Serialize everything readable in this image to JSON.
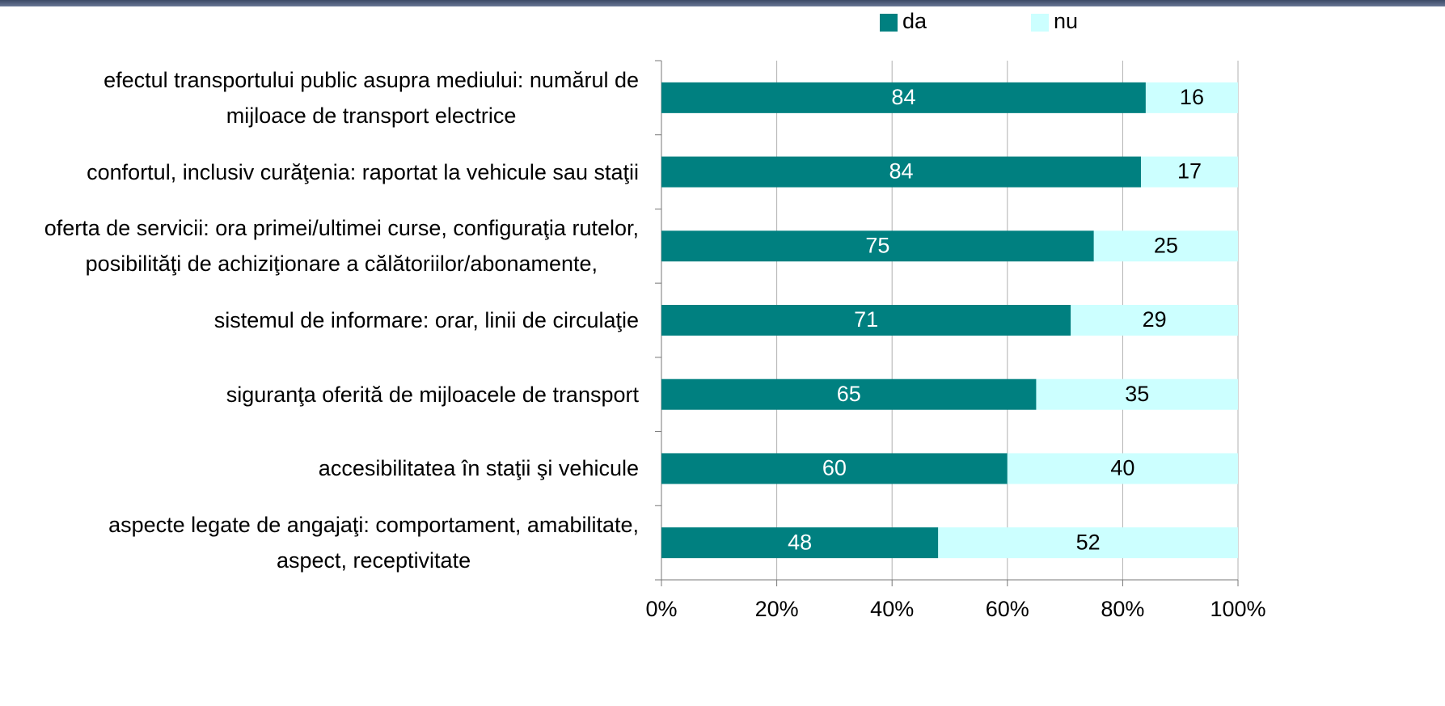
{
  "chart_data": {
    "type": "bar",
    "orientation": "horizontal",
    "stacked": true,
    "percent_stacked": true,
    "categories": [
      "efectul transportului public asupra mediului: numărul de\nmijloace de transport electrice",
      "confortul, inclusiv curăţenia: raportat la vehicule sau staţii",
      "oferta de servicii: ora primei/ultimei curse, configuraţia rutelor,\nposibilităţi de achiziţionare a călătoriilor/abonamente,",
      "sistemul de informare: orar, linii de circulaţie",
      "siguranţa oferită de mijloacele de transport",
      "accesibilitatea în staţii şi vehicule",
      "aspecte legate de angajaţi: comportament, amabilitate,\naspect, receptivitate"
    ],
    "series": [
      {
        "name": "da",
        "color": "#008080",
        "label_color": "#ffffff",
        "values": [
          84,
          84,
          75,
          71,
          65,
          60,
          48
        ]
      },
      {
        "name": "nu",
        "color": "#ccffff",
        "label_color": "#000000",
        "values": [
          16,
          17,
          25,
          29,
          35,
          40,
          52
        ]
      }
    ],
    "xlim": [
      0,
      100
    ],
    "xticks": [
      {
        "value": 0,
        "label": "0%"
      },
      {
        "value": 20,
        "label": "20%"
      },
      {
        "value": 40,
        "label": "40%"
      },
      {
        "value": 60,
        "label": "60%"
      },
      {
        "value": 80,
        "label": "80%"
      },
      {
        "value": 100,
        "label": "100%"
      }
    ],
    "grid": true,
    "legend": "top-right"
  }
}
